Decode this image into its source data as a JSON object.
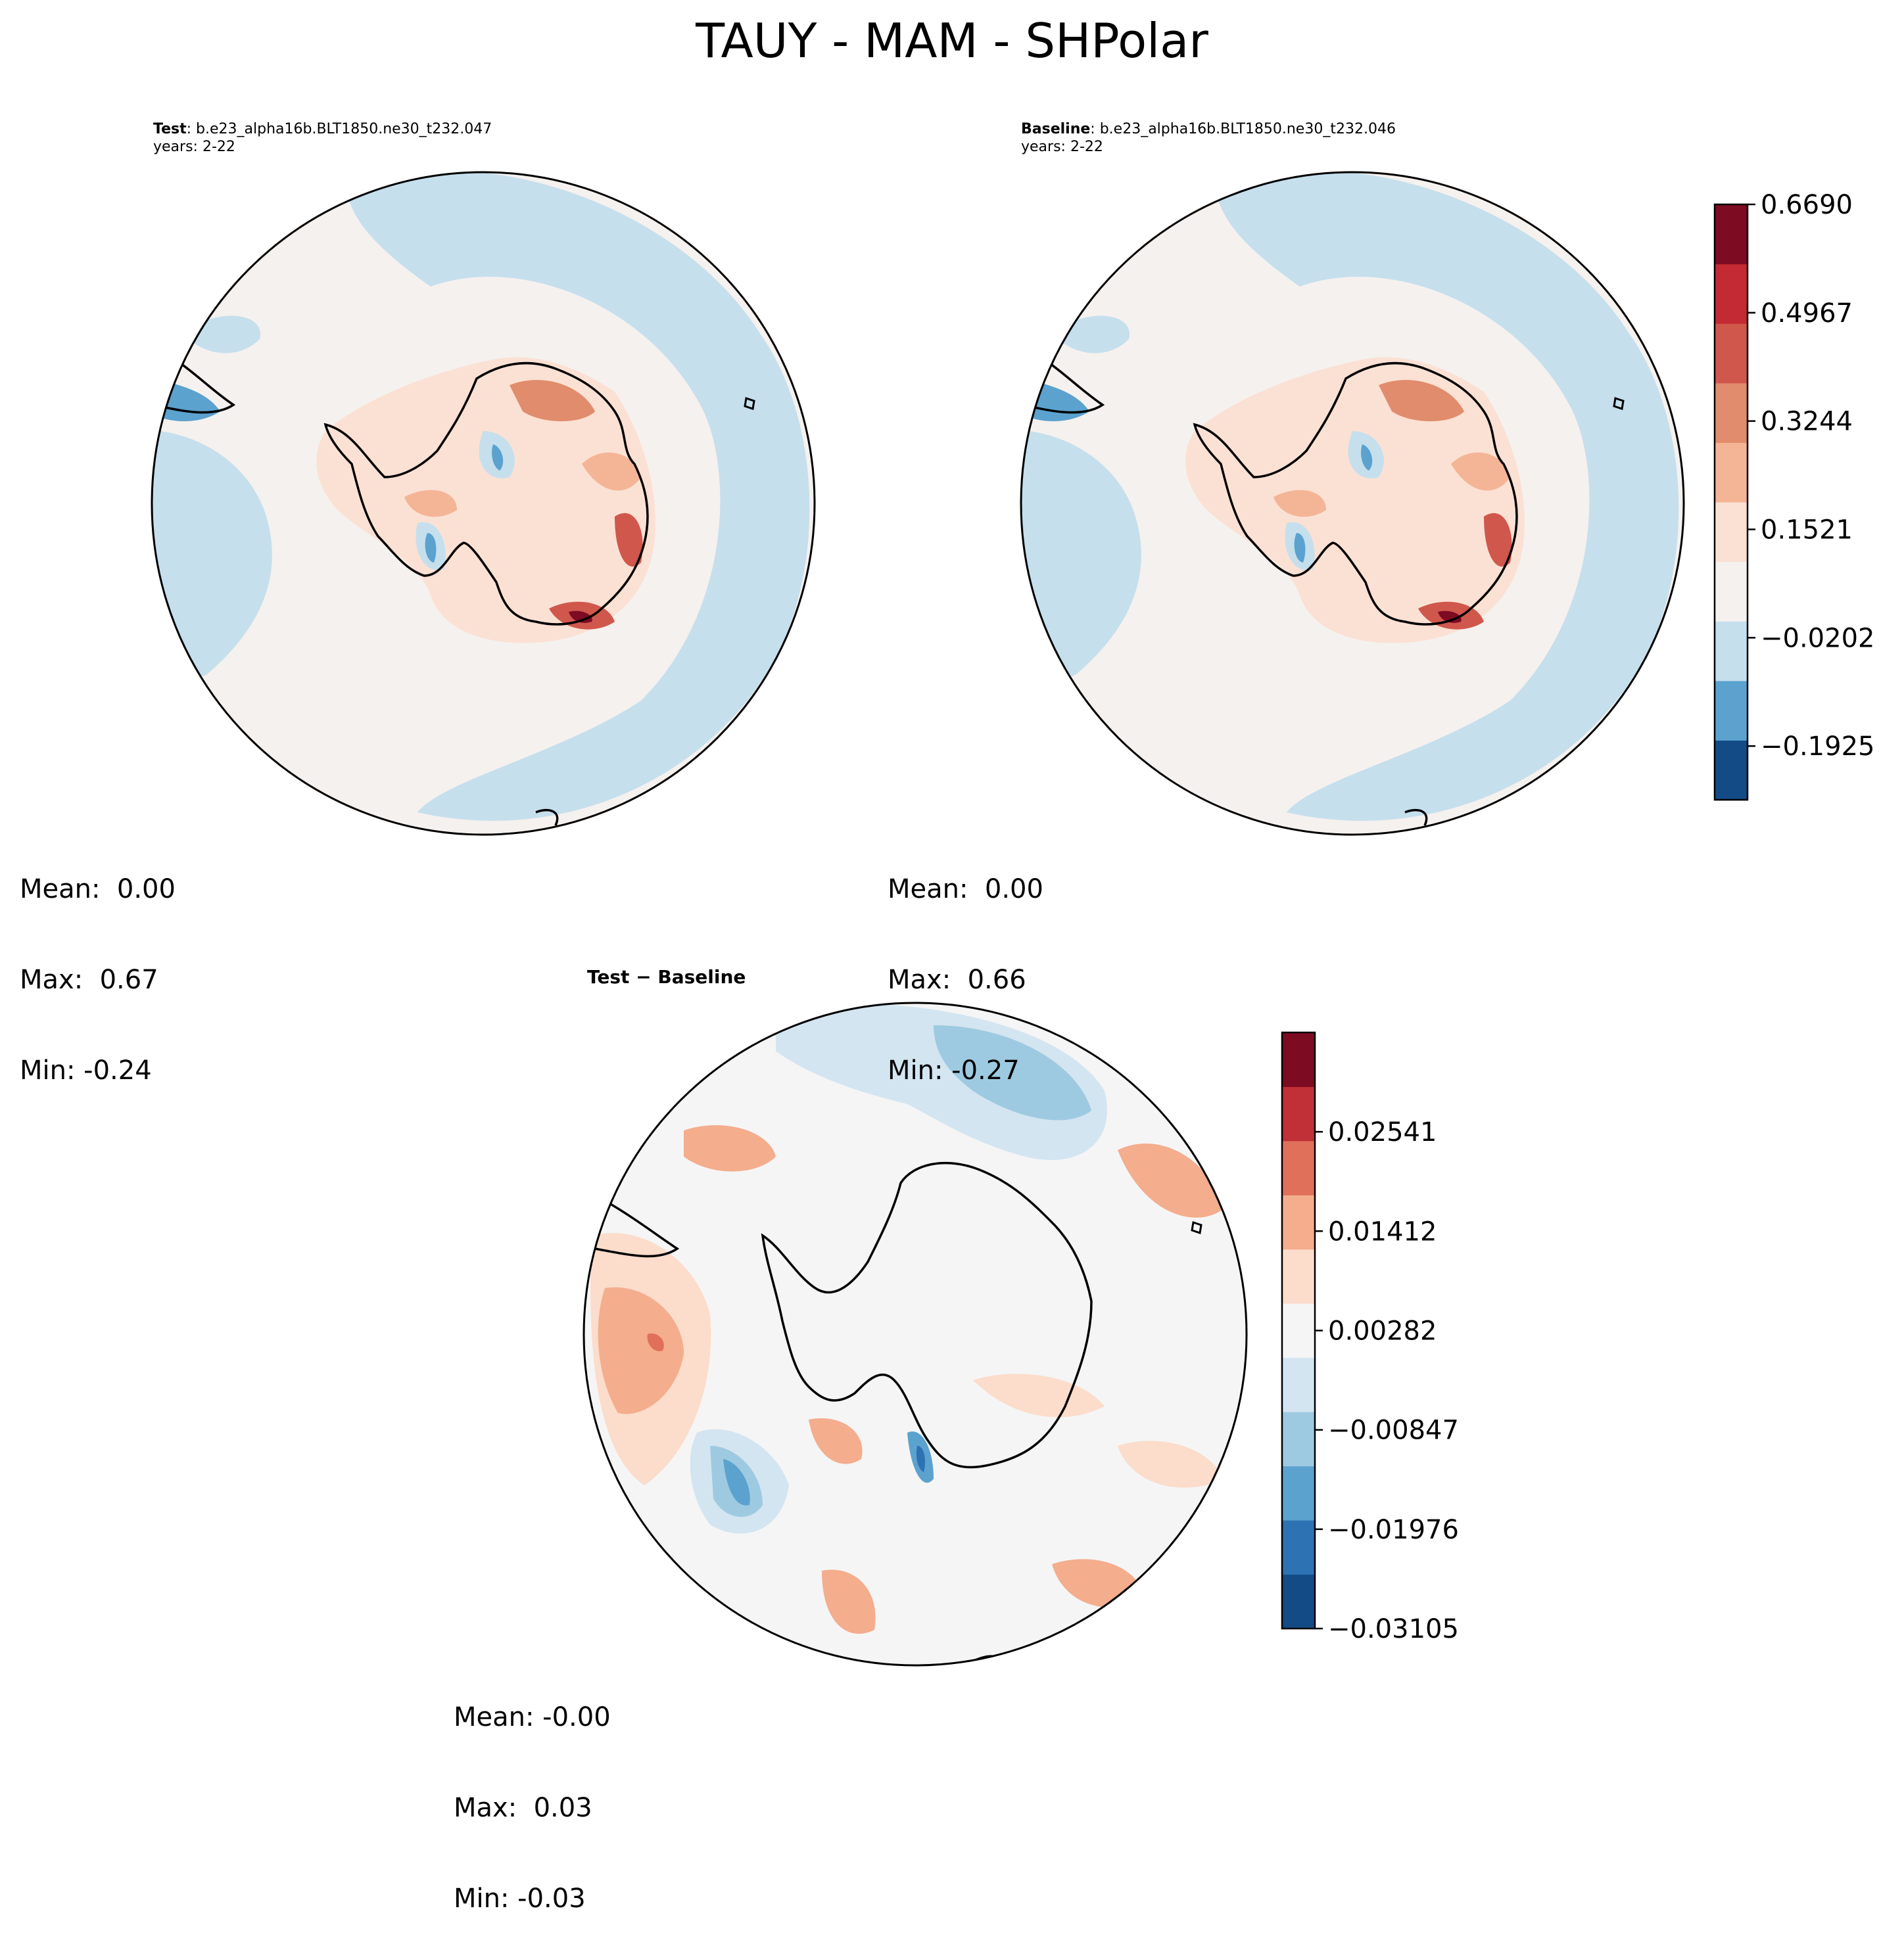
{
  "figure": {
    "title": "TAUY - MAM - SHPolar"
  },
  "panels": {
    "test": {
      "label": "Test",
      "case": ": b.e23_alpha16b.BLT1850.ne30_t232.047",
      "years": "years: 2-22",
      "stats": {
        "mean": "Mean:  0.00",
        "max": "Max:  0.67",
        "min": "Min: -0.24"
      }
    },
    "baseline": {
      "label": "Baseline",
      "case": ": b.e23_alpha16b.BLT1850.ne30_t232.046",
      "years": "years: 2-22",
      "stats": {
        "mean": "Mean:  0.00",
        "max": "Max:  0.66",
        "min": "Min: -0.27"
      }
    },
    "difference": {
      "title": "Test − Baseline",
      "stats": {
        "mean": "Mean: -0.00",
        "max": "Max:  0.03",
        "min": "Min: -0.03"
      }
    }
  },
  "chart_data": [
    {
      "type": "heatmap",
      "name": "field-colorbar",
      "colormap": "RdBu_r",
      "levels_count": 11,
      "vmin": -0.278,
      "vmax": 0.669,
      "tick_values": [
        -0.1925,
        -0.0202,
        0.1521,
        0.3244,
        0.4967,
        0.669
      ],
      "tick_labels": [
        "−0.1925",
        "−0.0202",
        "0.1521",
        "0.3244",
        "0.4967",
        "0.6690"
      ],
      "colors": [
        "#134b87",
        "#5ba2cf",
        "#c6dfed",
        "#f5f1ee",
        "#fbe1d4",
        "#f4b597",
        "#e18c6c",
        "#d0574c",
        "#c42a33",
        "#7d0b22"
      ]
    },
    {
      "type": "heatmap",
      "name": "difference-colorbar",
      "colormap": "RdBu_r",
      "levels_count": 12,
      "vmin": -0.03105,
      "vmax": 0.0367,
      "tick_values": [
        -0.03105,
        -0.01976,
        -0.00847,
        0.00282,
        0.01412,
        0.02541
      ],
      "tick_labels": [
        "−0.03105",
        "−0.01976",
        "−0.00847",
        "0.00282",
        "0.01412",
        "0.02541"
      ],
      "colors": [
        "#134b87",
        "#2d72b2",
        "#5ba2cf",
        "#9ecae1",
        "#d3e5f1",
        "#f5f5f5",
        "#fcdccb",
        "#f4ad8d",
        "#e0705a",
        "#c03036",
        "#7d0b22"
      ]
    }
  ],
  "colors": {
    "ocean_test": "#c6dfed",
    "ocean_neutral": "#f5f1ee",
    "diff_neutral": "#f5f5f5"
  }
}
